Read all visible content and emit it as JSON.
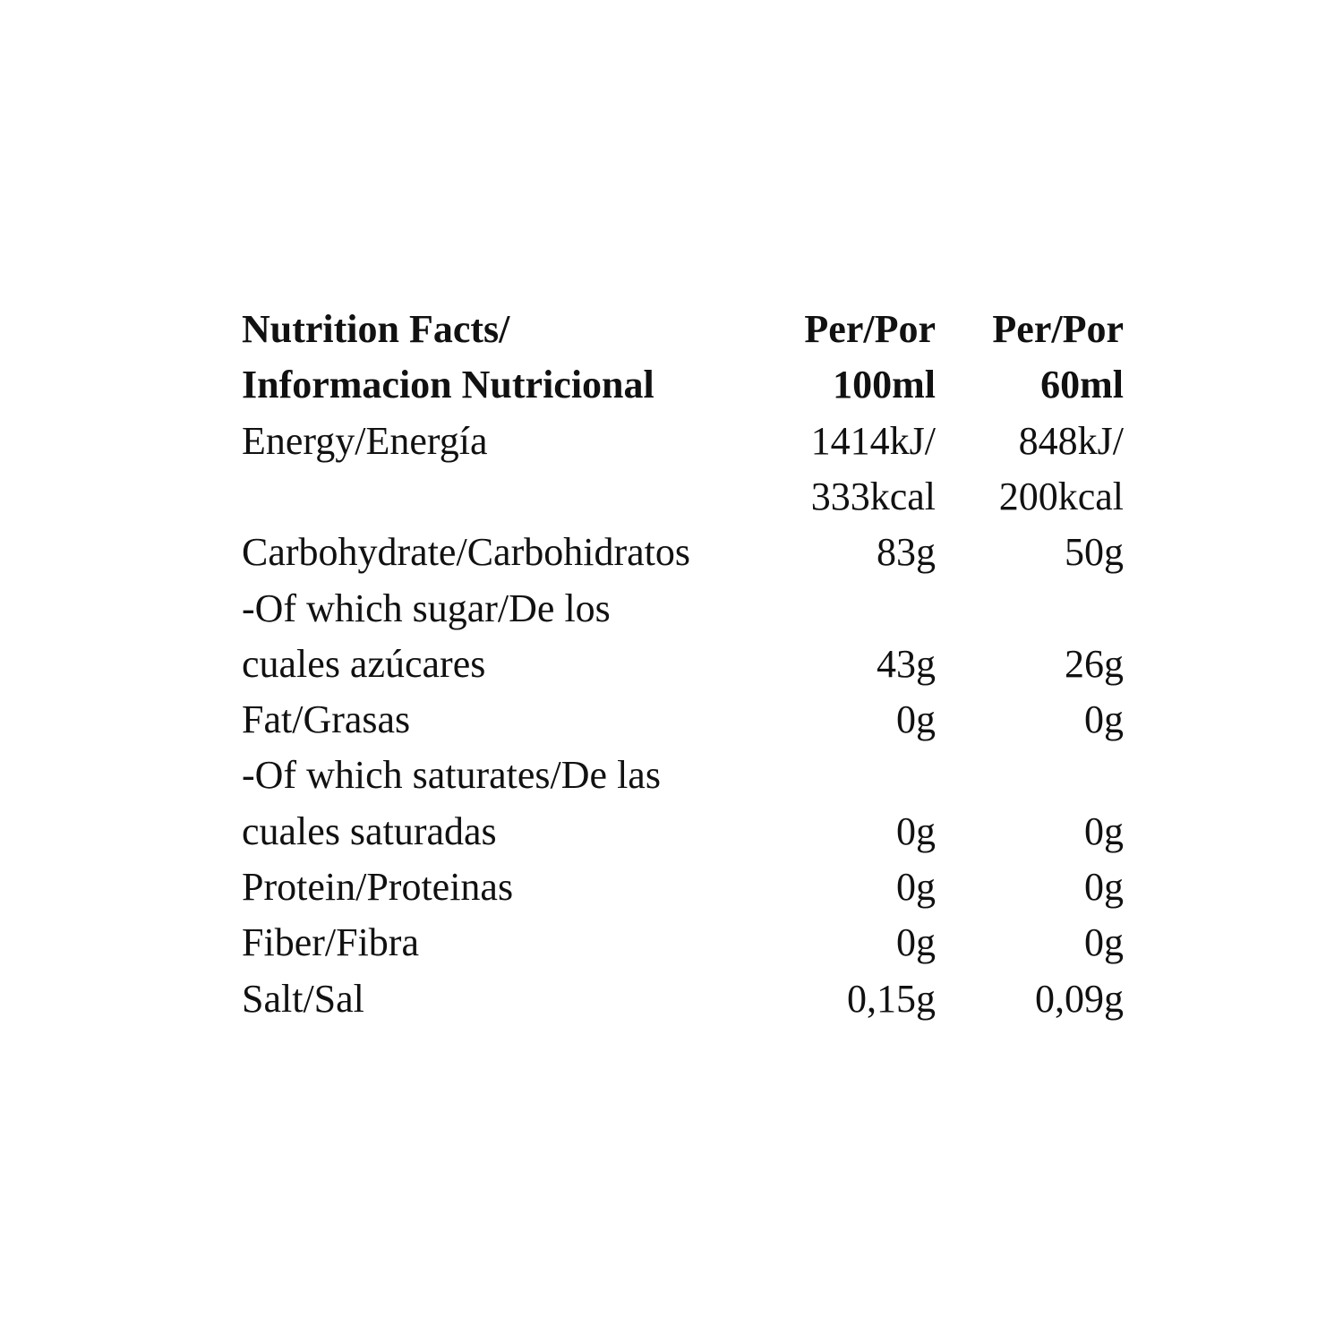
{
  "header": {
    "label": [
      "Nutrition Facts/",
      "Informacion Nutricional"
    ],
    "col1": [
      "Per/Por",
      "100ml"
    ],
    "col2": [
      "Per/Por",
      "60ml"
    ]
  },
  "rows": [
    {
      "label": [
        "Energy/Energía"
      ],
      "col1": [
        "1414kJ/",
        "333kcal"
      ],
      "col2": [
        "848kJ/",
        "200kcal"
      ]
    },
    {
      "label": [
        "Carbohydrate/Carbohidratos"
      ],
      "col1": [
        "83g"
      ],
      "col2": [
        "50g"
      ]
    },
    {
      "label": [
        "-Of which sugar/De los",
        "cuales azúcares"
      ],
      "col1": [
        "43g"
      ],
      "col2": [
        "26g"
      ]
    },
    {
      "label": [
        "Fat/Grasas"
      ],
      "col1": [
        "0g"
      ],
      "col2": [
        "0g"
      ]
    },
    {
      "label": [
        "-Of which saturates/De las",
        "cuales saturadas"
      ],
      "col1": [
        "0g"
      ],
      "col2": [
        "0g"
      ]
    },
    {
      "label": [
        "Protein/Proteinas"
      ],
      "col1": [
        "0g"
      ],
      "col2": [
        "0g"
      ]
    },
    {
      "label": [
        "Fiber/Fibra"
      ],
      "col1": [
        "0g"
      ],
      "col2": [
        "0g"
      ]
    },
    {
      "label": [
        "Salt/Sal"
      ],
      "col1": [
        "0,15g"
      ],
      "col2": [
        "0,09g"
      ]
    }
  ]
}
